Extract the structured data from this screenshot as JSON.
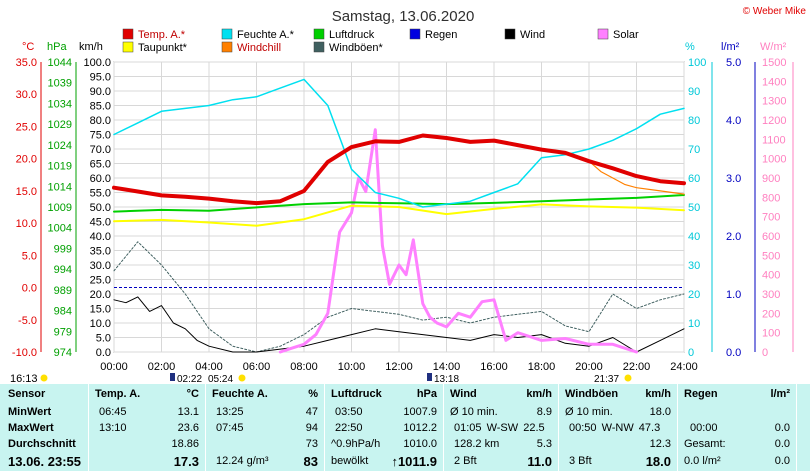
{
  "page": {
    "title": "Samstag, 13.06.2020",
    "copyright": "© Weber Mike"
  },
  "chart_data": {
    "type": "line",
    "title": "Samstag, 13.06.2020",
    "x_ticks": [
      "00:00",
      "02:00",
      "04:00",
      "06:00",
      "08:00",
      "10:00",
      "12:00",
      "14:00",
      "16:00",
      "18:00",
      "20:00",
      "22:00",
      "24:00"
    ],
    "xlim": [
      0,
      24
    ],
    "axes": {
      "temp": {
        "unit": "°C",
        "color": "#e00000",
        "ticks": [
          "35.0",
          "30.0",
          "25.0",
          "20.0",
          "15.0",
          "10.0",
          "5.0",
          "0.0",
          "-5.0",
          "-10.0"
        ],
        "range": [
          -10,
          35
        ]
      },
      "hpa": {
        "unit": "hPa",
        "color": "#00a000",
        "ticks": [
          "1044",
          "1039",
          "1034",
          "1029",
          "1024",
          "1019",
          "1014",
          "1009",
          "1004",
          "999",
          "994",
          "989",
          "984",
          "979",
          "974"
        ],
        "range": [
          974,
          1044
        ]
      },
      "wind": {
        "unit": "km/h",
        "color": "#000000",
        "ticks": [
          "100.0",
          "95.0",
          "90.0",
          "85.0",
          "80.0",
          "75.0",
          "70.0",
          "65.0",
          "60.0",
          "55.0",
          "50.0",
          "45.0",
          "40.0",
          "35.0",
          "30.0",
          "25.0",
          "20.0",
          "15.0",
          "10.0",
          "5.0",
          "0.0"
        ],
        "range": [
          0,
          100
        ]
      },
      "hum": {
        "unit": "%",
        "color": "#00c8d8",
        "ticks": [
          "100",
          "90",
          "80",
          "70",
          "60",
          "50",
          "40",
          "30",
          "20",
          "10",
          "0"
        ],
        "range": [
          0,
          100
        ]
      },
      "rain": {
        "unit": "l/m²",
        "color": "#0000c0",
        "ticks": [
          "5.0",
          "4.0",
          "3.0",
          "2.0",
          "1.0",
          "0.0"
        ],
        "range": [
          0,
          5
        ]
      },
      "solar": {
        "unit": "W/m²",
        "color": "#ff80c0",
        "ticks": [
          "1500",
          "1400",
          "1300",
          "1200",
          "1100",
          "1000",
          "900",
          "800",
          "700",
          "600",
          "500",
          "400",
          "300",
          "200",
          "100",
          "0"
        ],
        "range": [
          0,
          1500
        ]
      }
    },
    "legend": [
      {
        "name": "Temp. A.*",
        "color": "#e00000"
      },
      {
        "name": "Feuchte A.*",
        "color": "#00e0f0"
      },
      {
        "name": "Luftdruck",
        "color": "#00d000"
      },
      {
        "name": "Regen",
        "color": "#0000e0"
      },
      {
        "name": "Wind",
        "color": "#000000"
      },
      {
        "name": "Solar",
        "color": "#ff80ff"
      },
      {
        "name": "Taupunkt*",
        "color": "#ffff00"
      },
      {
        "name": "Windchill",
        "color": "#ff8000"
      },
      {
        "name": "Windböen*",
        "color": "#406060"
      }
    ],
    "series": [
      {
        "name": "Temp. A.*",
        "axis": "temp",
        "x": [
          0,
          1,
          2,
          3,
          4,
          5,
          6,
          7,
          8,
          9,
          10,
          11,
          12,
          13,
          14,
          15,
          16,
          17,
          18,
          19,
          20,
          21,
          22,
          23,
          24
        ],
        "values": [
          15.5,
          14.9,
          14.3,
          14.1,
          13.8,
          13.4,
          13.1,
          13.4,
          15.0,
          19.5,
          21.8,
          22.7,
          22.6,
          23.6,
          23.2,
          22.6,
          22.8,
          22.1,
          21.4,
          20.9,
          19.6,
          18.5,
          17.3,
          16.5,
          16.2
        ]
      },
      {
        "name": "Feuchte A.*",
        "axis": "hum",
        "x": [
          0,
          1,
          2,
          3,
          4,
          5,
          6,
          7,
          8,
          9,
          10,
          11,
          12,
          13,
          14,
          15,
          16,
          17,
          18,
          19,
          20,
          21,
          22,
          23,
          24
        ],
        "values": [
          75,
          79,
          83,
          84,
          85,
          87,
          88,
          91,
          94,
          85,
          63,
          55,
          53,
          50,
          51,
          52,
          55,
          58,
          67,
          68,
          70,
          73,
          77,
          82,
          84
        ]
      },
      {
        "name": "Luftdruck",
        "axis": "hpa",
        "x": [
          0,
          2,
          4,
          6,
          8,
          10,
          12,
          14,
          16,
          18,
          20,
          22,
          24
        ],
        "values": [
          1007.9,
          1008.3,
          1008.1,
          1008.9,
          1009.7,
          1010.1,
          1009.9,
          1009.7,
          1010.0,
          1010.4,
          1010.8,
          1011.2,
          1011.9
        ]
      },
      {
        "name": "Taupunkt*",
        "axis": "temp",
        "x": [
          0,
          2,
          4,
          6,
          8,
          10,
          12,
          14,
          16,
          18,
          20,
          22,
          24
        ],
        "values": [
          10.3,
          10.5,
          10.1,
          9.6,
          10.6,
          12.7,
          12.5,
          11.4,
          12.2,
          12.9,
          12.6,
          12.4,
          12.0
        ]
      },
      {
        "name": "Windchill",
        "axis": "temp",
        "x": [
          8,
          9,
          10,
          11,
          12,
          13,
          14,
          15,
          16,
          17,
          18,
          19,
          20,
          20.5,
          21,
          21.5,
          22,
          23,
          24
        ],
        "values": [
          15.0,
          19.5,
          21.8,
          22.7,
          22.6,
          23.6,
          23.2,
          22.6,
          22.8,
          22.1,
          21.4,
          20.9,
          19.6,
          18.0,
          17.0,
          16.0,
          15.5,
          15.0,
          14.5
        ]
      },
      {
        "name": "Wind",
        "axis": "wind",
        "x": [
          0,
          0.5,
          1,
          1.5,
          2,
          2.5,
          3,
          3.5,
          4,
          5,
          6,
          7,
          8,
          9,
          10,
          11,
          12,
          13,
          14,
          15,
          16,
          17,
          18,
          19,
          20,
          21,
          22,
          23,
          24
        ],
        "values": [
          18,
          17,
          19,
          14,
          16,
          10,
          8,
          4,
          2,
          0,
          0,
          1,
          2,
          4,
          6,
          8,
          7,
          6,
          5,
          4,
          6,
          5,
          6,
          3,
          2,
          5,
          0,
          4,
          8
        ]
      },
      {
        "name": "Windböen*",
        "axis": "wind",
        "x": [
          0,
          1,
          2,
          3,
          4,
          5,
          6,
          7,
          8,
          9,
          10,
          11,
          12,
          13,
          14,
          15,
          16,
          17,
          18,
          19,
          20,
          21,
          22,
          23,
          24
        ],
        "values": [
          28,
          38,
          30,
          20,
          8,
          2,
          0,
          2,
          6,
          12,
          15,
          14,
          13,
          11,
          12,
          10,
          12,
          13,
          14,
          9,
          7,
          20,
          15,
          18,
          20
        ]
      },
      {
        "name": "Solar",
        "axis": "solar",
        "x": [
          7,
          7.5,
          8,
          8.5,
          9,
          9.5,
          10,
          10.3,
          10.6,
          11,
          11.3,
          11.6,
          12,
          12.3,
          12.6,
          13,
          13.3,
          13.6,
          14,
          14.5,
          15,
          15.5,
          16,
          16.5,
          17,
          17.5,
          18,
          19,
          20,
          21,
          22
        ],
        "values": [
          0,
          20,
          40,
          90,
          200,
          620,
          720,
          900,
          830,
          1150,
          550,
          350,
          450,
          400,
          580,
          250,
          180,
          150,
          130,
          200,
          180,
          260,
          270,
          60,
          100,
          80,
          60,
          70,
          40,
          40,
          0
        ]
      }
    ]
  },
  "ticks_under": {
    "left_time": "16:13",
    "marker_0222": "02:22",
    "marker_0524": "05:24",
    "marker_1318": "13:18",
    "marker_2137": "21:37"
  },
  "table": {
    "sensor": {
      "head": "Sensor",
      "rows": [
        "MinWert",
        "MaxWert",
        "Durchschnitt"
      ],
      "foot": "13.06. 23:55"
    },
    "temp": {
      "head": "Temp. A.",
      "unit": "°C",
      "rows": [
        {
          "t": "06:45",
          "v": "13.1"
        },
        {
          "t": "13:10",
          "v": "23.6"
        },
        {
          "t": "",
          "v": "18.86"
        }
      ],
      "foot": "17.3"
    },
    "hum": {
      "head": "Feuchte A.",
      "unit": "%",
      "rows": [
        {
          "t": "13:25",
          "v": "47"
        },
        {
          "t": "07:45",
          "v": "94"
        },
        {
          "t": "",
          "v": "73"
        }
      ],
      "foot_left": "12.24 g/m³",
      "foot": "83"
    },
    "press": {
      "head": "Luftdruck",
      "unit": "hPa",
      "rows": [
        {
          "t": "03:50",
          "v": "1007.9"
        },
        {
          "t": "22:50",
          "v": "1012.2"
        },
        {
          "t": "^0.9hPa/h",
          "v": "1010.0"
        }
      ],
      "foot_left": "bewölkt",
      "foot": "↑1011.9"
    },
    "wind": {
      "head": "Wind",
      "unit": "km/h",
      "rows": [
        {
          "t": "Ø 10 min.",
          "v": "8.9"
        },
        {
          "t": "01:05    W-SW 22.5",
          "v": ""
        },
        {
          "t": "128.2 km",
          "v": "5.3"
        }
      ],
      "foot_left": "2 Bft",
      "foot": "11.0"
    },
    "gust": {
      "head": "Windböen",
      "unit": "km/h",
      "rows": [
        {
          "t": "Ø 10 min.",
          "v": "18.0"
        },
        {
          "t": "00:50    W-NW 47.3",
          "v": ""
        },
        {
          "t": "",
          "v": "12.3"
        }
      ],
      "foot_left": "3 Bft",
      "foot": "18.0"
    },
    "rain": {
      "head": "Regen",
      "unit": "l/m²",
      "rows": [
        {
          "t": "",
          "v": ""
        },
        {
          "t": "00:00",
          "v": "0.0"
        },
        {
          "t": "Gesamt:",
          "v": "0.0"
        }
      ],
      "foot_left": "0.0 l/m²",
      "foot": "0.0"
    }
  }
}
